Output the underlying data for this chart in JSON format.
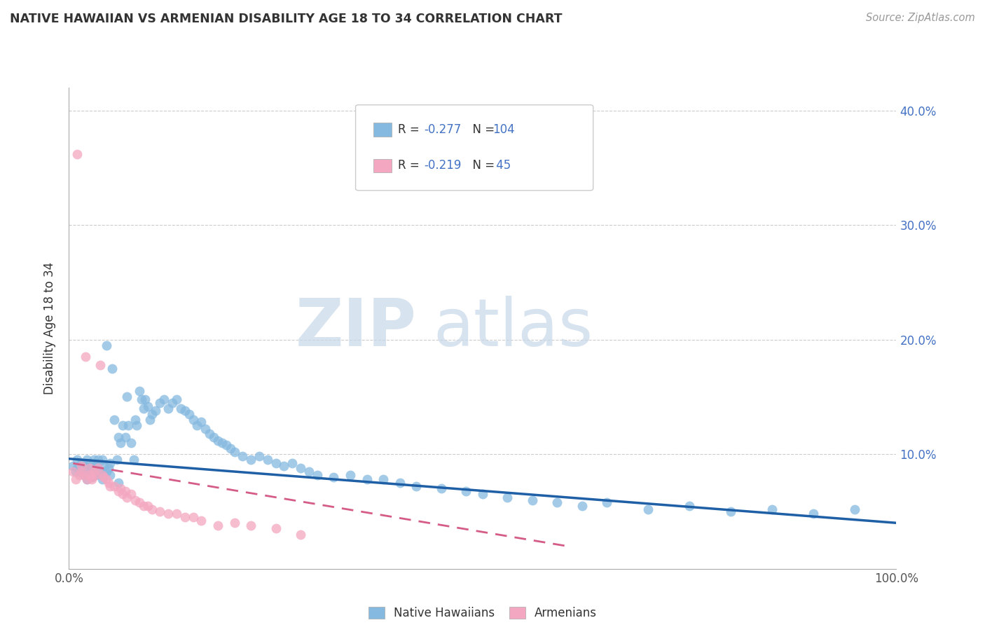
{
  "title": "NATIVE HAWAIIAN VS ARMENIAN DISABILITY AGE 18 TO 34 CORRELATION CHART",
  "source": "Source: ZipAtlas.com",
  "ylabel": "Disability Age 18 to 34",
  "xlim": [
    0.0,
    1.0
  ],
  "ylim": [
    0.0,
    0.42
  ],
  "xticks": [
    0.0,
    0.2,
    0.4,
    0.6,
    0.8,
    1.0
  ],
  "xticklabels": [
    "0.0%",
    "",
    "",
    "",
    "",
    "100.0%"
  ],
  "yticks": [
    0.0,
    0.1,
    0.2,
    0.3,
    0.4
  ],
  "yticklabels_right": [
    "",
    "10.0%",
    "20.0%",
    "30.0%",
    "40.0%"
  ],
  "legend_label1": "Native Hawaiians",
  "legend_label2": "Armenians",
  "blue_color": "#85b9e0",
  "pink_color": "#f4a7c0",
  "blue_line_color": "#1f5fa6",
  "pink_line_color": "#d45c87",
  "tick_label_color": "#4472c4",
  "watermark_zip": "ZIP",
  "watermark_atlas": "atlas",
  "blue_scatter_x": [
    0.005,
    0.008,
    0.01,
    0.012,
    0.015,
    0.015,
    0.018,
    0.018,
    0.02,
    0.022,
    0.022,
    0.025,
    0.025,
    0.028,
    0.028,
    0.03,
    0.03,
    0.032,
    0.032,
    0.035,
    0.035,
    0.038,
    0.04,
    0.04,
    0.042,
    0.045,
    0.045,
    0.048,
    0.05,
    0.05,
    0.052,
    0.055,
    0.058,
    0.06,
    0.062,
    0.065,
    0.068,
    0.07,
    0.072,
    0.075,
    0.078,
    0.08,
    0.082,
    0.085,
    0.088,
    0.09,
    0.092,
    0.095,
    0.098,
    0.1,
    0.105,
    0.11,
    0.115,
    0.12,
    0.125,
    0.13,
    0.135,
    0.14,
    0.145,
    0.15,
    0.155,
    0.16,
    0.165,
    0.17,
    0.175,
    0.18,
    0.185,
    0.19,
    0.195,
    0.2,
    0.21,
    0.22,
    0.23,
    0.24,
    0.25,
    0.26,
    0.27,
    0.28,
    0.29,
    0.3,
    0.32,
    0.34,
    0.36,
    0.38,
    0.4,
    0.42,
    0.45,
    0.48,
    0.5,
    0.53,
    0.56,
    0.59,
    0.62,
    0.65,
    0.7,
    0.75,
    0.8,
    0.85,
    0.9,
    0.95,
    0.01,
    0.03,
    0.04,
    0.06
  ],
  "blue_scatter_y": [
    0.09,
    0.085,
    0.095,
    0.085,
    0.088,
    0.092,
    0.082,
    0.09,
    0.088,
    0.095,
    0.078,
    0.085,
    0.092,
    0.088,
    0.08,
    0.095,
    0.085,
    0.09,
    0.082,
    0.095,
    0.088,
    0.085,
    0.095,
    0.082,
    0.09,
    0.195,
    0.085,
    0.088,
    0.092,
    0.082,
    0.175,
    0.13,
    0.095,
    0.115,
    0.11,
    0.125,
    0.115,
    0.15,
    0.125,
    0.11,
    0.095,
    0.13,
    0.125,
    0.155,
    0.148,
    0.14,
    0.148,
    0.142,
    0.13,
    0.135,
    0.138,
    0.145,
    0.148,
    0.14,
    0.145,
    0.148,
    0.14,
    0.138,
    0.135,
    0.13,
    0.125,
    0.128,
    0.122,
    0.118,
    0.115,
    0.112,
    0.11,
    0.108,
    0.105,
    0.102,
    0.098,
    0.095,
    0.098,
    0.095,
    0.092,
    0.09,
    0.092,
    0.088,
    0.085,
    0.082,
    0.08,
    0.082,
    0.078,
    0.078,
    0.075,
    0.072,
    0.07,
    0.068,
    0.065,
    0.062,
    0.06,
    0.058,
    0.055,
    0.058,
    0.052,
    0.055,
    0.05,
    0.052,
    0.048,
    0.052,
    0.088,
    0.082,
    0.078,
    0.075
  ],
  "pink_scatter_x": [
    0.005,
    0.008,
    0.01,
    0.012,
    0.015,
    0.015,
    0.018,
    0.02,
    0.022,
    0.025,
    0.025,
    0.028,
    0.028,
    0.03,
    0.032,
    0.035,
    0.038,
    0.04,
    0.042,
    0.045,
    0.048,
    0.05,
    0.055,
    0.06,
    0.062,
    0.065,
    0.068,
    0.07,
    0.075,
    0.08,
    0.085,
    0.09,
    0.095,
    0.1,
    0.11,
    0.12,
    0.13,
    0.14,
    0.15,
    0.16,
    0.18,
    0.2,
    0.22,
    0.25,
    0.28
  ],
  "pink_scatter_y": [
    0.085,
    0.078,
    0.362,
    0.082,
    0.085,
    0.09,
    0.082,
    0.185,
    0.078,
    0.082,
    0.088,
    0.08,
    0.078,
    0.085,
    0.082,
    0.088,
    0.178,
    0.082,
    0.08,
    0.078,
    0.075,
    0.072,
    0.072,
    0.068,
    0.07,
    0.065,
    0.068,
    0.062,
    0.065,
    0.06,
    0.058,
    0.055,
    0.055,
    0.052,
    0.05,
    0.048,
    0.048,
    0.045,
    0.045,
    0.042,
    0.038,
    0.04,
    0.038,
    0.035,
    0.03
  ],
  "blue_line_x": [
    0.0,
    1.0
  ],
  "blue_line_y": [
    0.096,
    0.04
  ],
  "pink_line_x": [
    0.005,
    0.6
  ],
  "pink_line_y": [
    0.092,
    0.02
  ]
}
